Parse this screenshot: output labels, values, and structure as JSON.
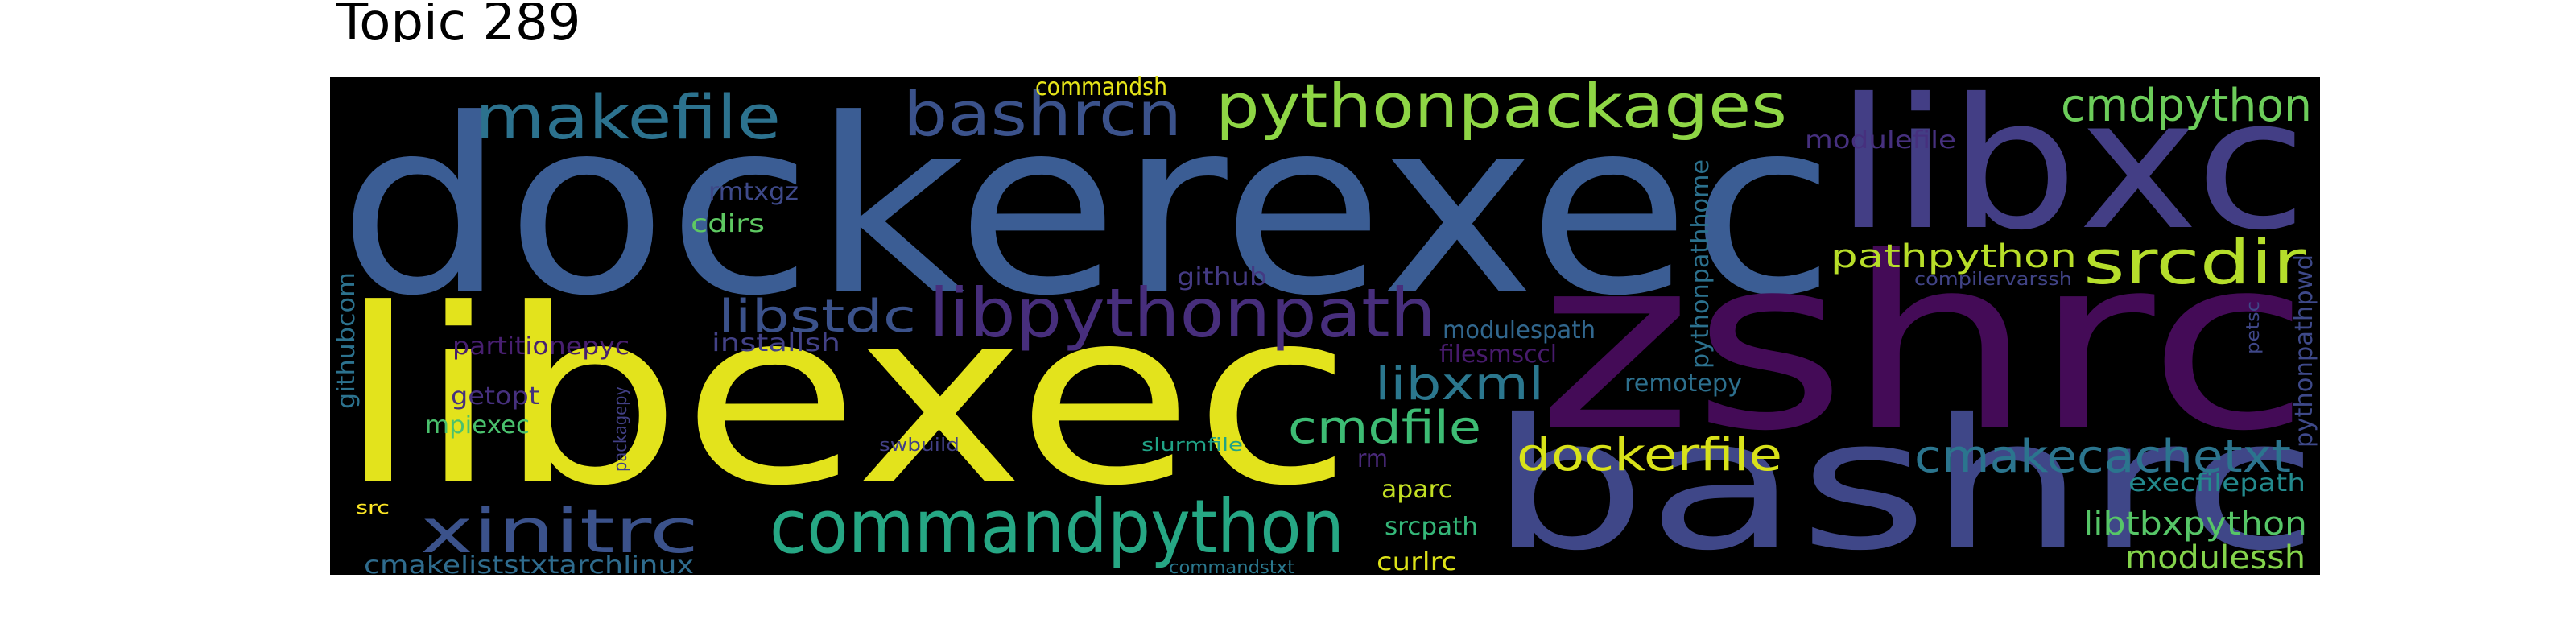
{
  "title": "Topic 289",
  "cloud": {
    "background": "#000000",
    "words": [
      {
        "text": "dockerexec",
        "color": "#3b5d94"
      },
      {
        "text": "libexec",
        "color": "#e3e31c"
      },
      {
        "text": "zshrc",
        "color": "#440b57"
      },
      {
        "text": "libxc",
        "color": "#433e85"
      },
      {
        "text": "bashrc",
        "color": "#3f4788"
      },
      {
        "text": "commandpython",
        "color": "#26a784"
      },
      {
        "text": "libpythonpath",
        "color": "#472e7c"
      },
      {
        "text": "makefile",
        "color": "#2c728e"
      },
      {
        "text": "bashrcn",
        "color": "#3b528b"
      },
      {
        "text": "pythonpackages",
        "color": "#8ed645"
      },
      {
        "text": "cmdpython",
        "color": "#6ccd5a"
      },
      {
        "text": "srcdir",
        "color": "#b5de2b"
      },
      {
        "text": "xinitrc",
        "color": "#3b528b"
      },
      {
        "text": "cmakecachetxt",
        "color": "#2b758e"
      },
      {
        "text": "dockerfile",
        "color": "#d8e219"
      },
      {
        "text": "libstdc",
        "color": "#3b528b"
      },
      {
        "text": "cmdfile",
        "color": "#3dbc74"
      },
      {
        "text": "libxml",
        "color": "#2b778e"
      },
      {
        "text": "pathpython",
        "color": "#b8de29"
      },
      {
        "text": "libtbxpython",
        "color": "#56c667"
      },
      {
        "text": "modulessh",
        "color": "#84d44b"
      },
      {
        "text": "pythonpathhome",
        "color": "#2c718e"
      },
      {
        "text": "pythonpathpwd",
        "color": "#3e4989"
      },
      {
        "text": "modulespath",
        "color": "#31678e"
      },
      {
        "text": "remotepy",
        "color": "#2d708e"
      },
      {
        "text": "execfilepath",
        "color": "#238a8d"
      },
      {
        "text": "github",
        "color": "#443a83"
      },
      {
        "text": "githubcom",
        "color": "#2c728e"
      },
      {
        "text": "partitionepyc",
        "color": "#481f70"
      },
      {
        "text": "installsh",
        "color": "#424186"
      },
      {
        "text": "getopt",
        "color": "#46307e"
      },
      {
        "text": "mpiexec",
        "color": "#4ac16d"
      },
      {
        "text": "rmtxgz",
        "color": "#3e4989"
      },
      {
        "text": "cdirs",
        "color": "#5ec962"
      },
      {
        "text": "commandsh",
        "color": "#e5e419"
      },
      {
        "text": "modulefile",
        "color": "#46307e"
      },
      {
        "text": "filesmsccl",
        "color": "#481b6d"
      },
      {
        "text": "compilervarssh",
        "color": "#414487"
      },
      {
        "text": "petsc",
        "color": "#3f4788"
      },
      {
        "text": "packagepy",
        "color": "#424086"
      },
      {
        "text": "swbuild",
        "color": "#424086"
      },
      {
        "text": "slurmfile",
        "color": "#20a386"
      },
      {
        "text": "rm",
        "color": "#482878"
      },
      {
        "text": "aparc",
        "color": "#c2df23"
      },
      {
        "text": "srcpath",
        "color": "#35b779"
      },
      {
        "text": "curlrc",
        "color": "#dde318"
      },
      {
        "text": "src",
        "color": "#fde725"
      },
      {
        "text": "cmakeliststxtarchlinux",
        "color": "#2f6c8e"
      },
      {
        "text": "commandstxt",
        "color": "#2a788e"
      }
    ]
  }
}
